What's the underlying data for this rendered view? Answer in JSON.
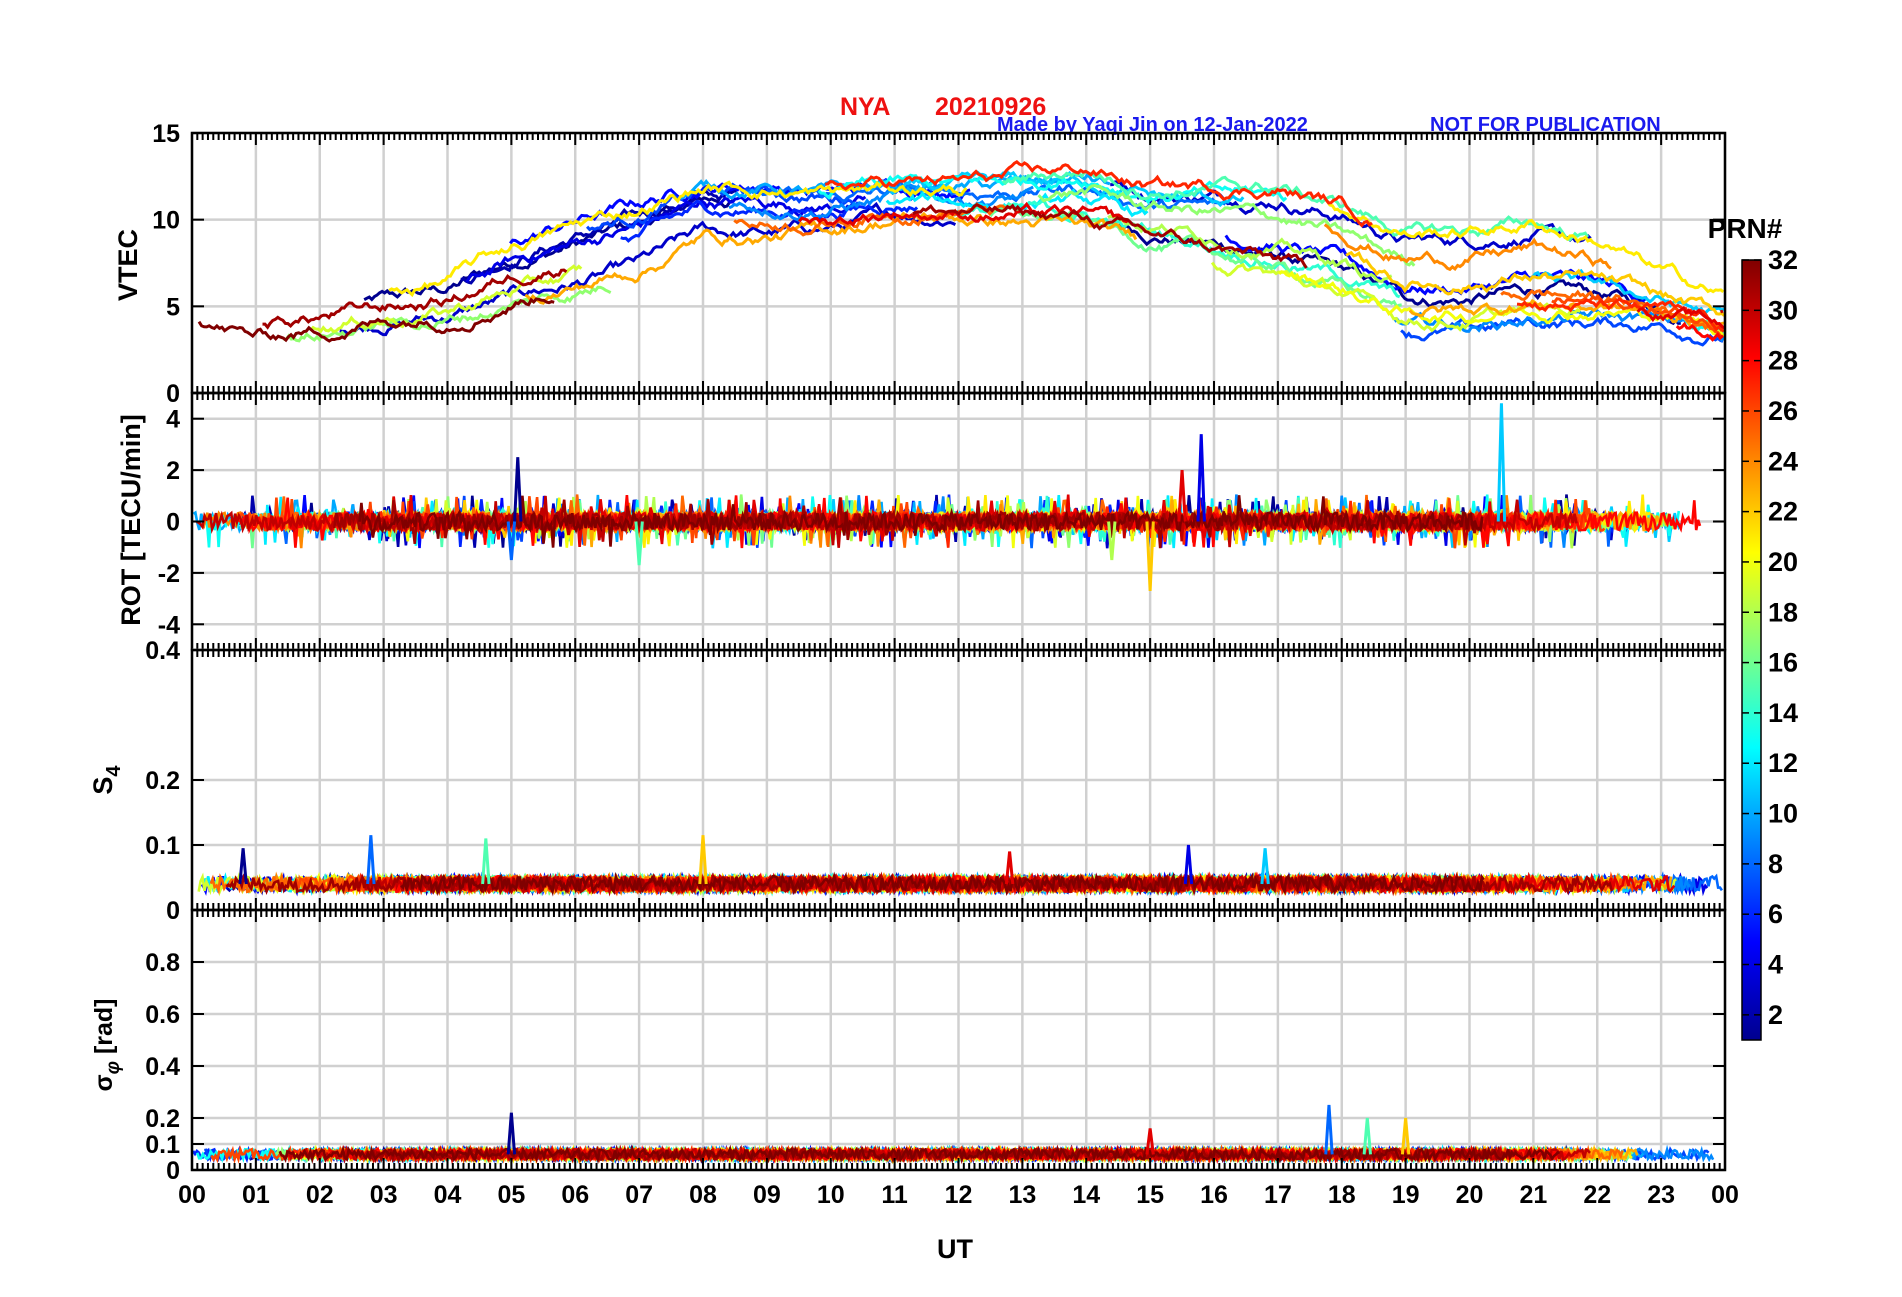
{
  "header": {
    "station": "NYA",
    "date": "20210926",
    "credit": "Made by Yaqi Jin on 12-Jan-2022",
    "notice": "NOT FOR PUBLICATION",
    "title_color": "#ee1111",
    "credit_color": "#1a1aee"
  },
  "chart_data": [
    {
      "type": "line",
      "panel": "vtec",
      "ylabel": "VTEC",
      "ylim": [
        0,
        15
      ],
      "yticks": [
        0,
        5,
        10,
        15
      ],
      "ytick_labels": [
        "0",
        "5",
        "10",
        "15"
      ],
      "xlim": [
        0,
        24
      ],
      "xlabel": "",
      "grid": true,
      "description_of_series": "32 PRN satellite tracks; values in TECU",
      "envelope": {
        "x": [
          0,
          1,
          2,
          3,
          4,
          5,
          6,
          7,
          8,
          9,
          10,
          11,
          12,
          13,
          14,
          15,
          16,
          17,
          18,
          19,
          20,
          21,
          22,
          23,
          24
        ],
        "mean": [
          5,
          4,
          4.5,
          5,
          5.5,
          7,
          8,
          9,
          10.5,
          10.5,
          10.5,
          11,
          11,
          11,
          11,
          10,
          9.5,
          9,
          8,
          6.5,
          6.5,
          7,
          6.5,
          5.5,
          4.5
        ],
        "spread": [
          1.2,
          1.2,
          1.3,
          1.2,
          1.5,
          2.2,
          2.5,
          2.5,
          2,
          2,
          1.5,
          1.2,
          1.2,
          1.5,
          2,
          2,
          2.5,
          3,
          3,
          3,
          3,
          3,
          2.5,
          1.5,
          1.2
        ]
      }
    },
    {
      "type": "line",
      "panel": "rot",
      "ylabel": "ROT [TECU/min]",
      "ylim": [
        -5,
        5
      ],
      "yticks": [
        -4,
        -2,
        0,
        2,
        4
      ],
      "ytick_labels": [
        "-4",
        "-2",
        "0",
        "2",
        "4"
      ],
      "xlim": [
        0,
        24
      ],
      "grid": true,
      "base_amplitude": 0.35,
      "spikes": [
        {
          "x": 5.1,
          "y": 2.5
        },
        {
          "x": 5.0,
          "y": -1.5
        },
        {
          "x": 7.0,
          "y": -1.7
        },
        {
          "x": 15.0,
          "y": -2.7
        },
        {
          "x": 15.5,
          "y": 2.0
        },
        {
          "x": 15.8,
          "y": 3.4
        },
        {
          "x": 20.5,
          "y": 4.6
        },
        {
          "x": 14.4,
          "y": -1.5
        }
      ]
    },
    {
      "type": "line",
      "panel": "s4",
      "ylabel": "S4",
      "ylim": [
        0,
        0.4
      ],
      "yticks": [
        0,
        0.1,
        0.2,
        0.4
      ],
      "ytick_labels": [
        "0",
        "0.1",
        "0.2",
        "0.4"
      ],
      "xlim": [
        0,
        24
      ],
      "grid": true,
      "baseline": 0.04,
      "base_amplitude": 0.012,
      "spikes": [
        {
          "x": 0.8,
          "y": 0.095
        },
        {
          "x": 2.8,
          "y": 0.115
        },
        {
          "x": 4.6,
          "y": 0.11
        },
        {
          "x": 8.0,
          "y": 0.115
        },
        {
          "x": 12.8,
          "y": 0.09
        },
        {
          "x": 15.6,
          "y": 0.1
        },
        {
          "x": 16.8,
          "y": 0.095
        }
      ]
    },
    {
      "type": "line",
      "panel": "sigma_phi",
      "ylabel": "σ_φ [rad]",
      "ylim": [
        0,
        1
      ],
      "yticks": [
        0,
        0.1,
        0.2,
        0.4,
        0.6,
        0.8
      ],
      "ytick_labels": [
        "0",
        "0.1",
        "0.2",
        "0.4",
        "0.6",
        "0.8"
      ],
      "xlim": [
        0,
        24
      ],
      "xlabel": "UT",
      "xtick_labels": [
        "00",
        "01",
        "02",
        "03",
        "04",
        "05",
        "06",
        "07",
        "08",
        "09",
        "10",
        "11",
        "12",
        "13",
        "14",
        "15",
        "16",
        "17",
        "18",
        "19",
        "20",
        "21",
        "22",
        "23",
        "00"
      ],
      "grid": true,
      "baseline": 0.06,
      "base_amplitude": 0.02,
      "spikes": [
        {
          "x": 5.0,
          "y": 0.22
        },
        {
          "x": 17.8,
          "y": 0.25
        },
        {
          "x": 18.4,
          "y": 0.2
        },
        {
          "x": 19.0,
          "y": 0.2
        },
        {
          "x": 15.0,
          "y": 0.16
        }
      ]
    }
  ],
  "colorbar": {
    "title": "PRN#",
    "range": [
      1,
      32
    ],
    "tick_labels": [
      "2",
      "4",
      "6",
      "8",
      "10",
      "12",
      "14",
      "16",
      "18",
      "20",
      "22",
      "24",
      "26",
      "28",
      "30",
      "32"
    ],
    "colormap": "jet",
    "colors": [
      "#00008f",
      "#0000ff",
      "#0080ff",
      "#00ffff",
      "#80ff80",
      "#ffff00",
      "#ff8000",
      "#ff0000",
      "#800000"
    ]
  }
}
